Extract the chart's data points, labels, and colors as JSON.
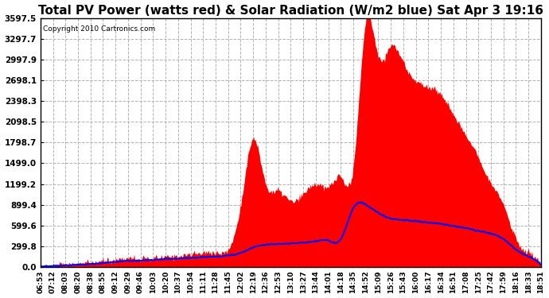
{
  "title": "Total PV Power (watts red) & Solar Radiation (W/m2 blue) Sat Apr 3 19:16",
  "copyright_text": "Copyright 2010 Cartronics.com",
  "yticks": [
    0.0,
    299.8,
    599.6,
    899.4,
    1199.2,
    1499.0,
    1798.7,
    2098.5,
    2398.3,
    2698.1,
    2997.9,
    3297.7,
    3597.5
  ],
  "ylim": [
    0,
    3597.5
  ],
  "background_color": "#ffffff",
  "grid_color": "#aaaaaa",
  "fill_color": "#ff0000",
  "line_color": "#0000ff",
  "title_fontsize": 11,
  "xtick_labels": [
    "06:53",
    "07:12",
    "08:03",
    "08:20",
    "08:38",
    "08:55",
    "09:12",
    "09:29",
    "09:46",
    "10:03",
    "10:20",
    "10:37",
    "10:54",
    "11:11",
    "11:28",
    "11:45",
    "12:02",
    "12:19",
    "12:36",
    "12:53",
    "13:10",
    "13:27",
    "13:44",
    "14:01",
    "14:18",
    "14:35",
    "14:52",
    "15:09",
    "15:26",
    "15:43",
    "16:00",
    "16:17",
    "16:34",
    "16:51",
    "17:08",
    "17:25",
    "17:42",
    "17:59",
    "18:16",
    "18:33",
    "18:51"
  ],
  "pv_power": [
    5,
    8,
    30,
    45,
    60,
    80,
    100,
    130,
    110,
    120,
    140,
    160,
    180,
    200,
    210,
    250,
    900,
    1850,
    1200,
    1100,
    950,
    1050,
    1200,
    1150,
    1300,
    1450,
    3550,
    3050,
    3200,
    2950,
    2700,
    2600,
    2500,
    2200,
    1900,
    1600,
    1200,
    900,
    400,
    200,
    30
  ],
  "solar_rad": [
    5,
    8,
    20,
    30,
    40,
    55,
    70,
    85,
    90,
    100,
    110,
    120,
    130,
    140,
    150,
    165,
    200,
    280,
    320,
    330,
    340,
    350,
    370,
    380,
    400,
    850,
    900,
    780,
    700,
    680,
    660,
    640,
    620,
    590,
    560,
    520,
    480,
    400,
    250,
    150,
    30
  ]
}
